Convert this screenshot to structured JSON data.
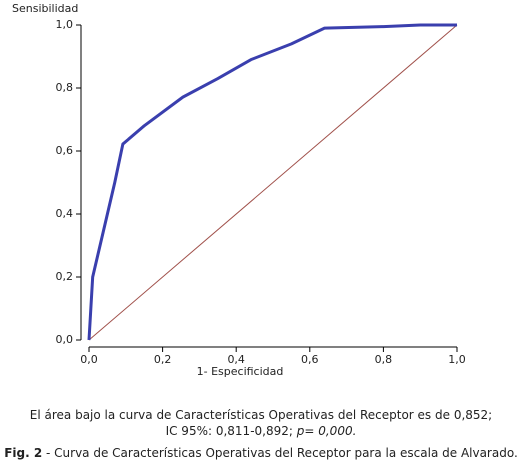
{
  "chart_data": {
    "type": "line",
    "ylabel": "Sensibilidad",
    "xlabel": "1- Especificidad",
    "xlim": [
      0,
      1
    ],
    "ylim": [
      0,
      1
    ],
    "xticks": [
      {
        "value": 0,
        "label": "0,0"
      },
      {
        "value": 0.2,
        "label": "0,2"
      },
      {
        "value": 0.4,
        "label": "0,4"
      },
      {
        "value": 0.6,
        "label": "0,6"
      },
      {
        "value": 0.8,
        "label": "0,8"
      },
      {
        "value": 1,
        "label": "1,0"
      }
    ],
    "yticks": [
      {
        "value": 0,
        "label": "0,0"
      },
      {
        "value": 0.2,
        "label": "0,2"
      },
      {
        "value": 0.4,
        "label": "0,4"
      },
      {
        "value": 0.6,
        "label": "0,6"
      },
      {
        "value": 0.8,
        "label": "0,8"
      },
      {
        "value": 1,
        "label": "1,0"
      }
    ],
    "grid": false,
    "series": [
      {
        "color": "#3a3fae",
        "width": 3,
        "x": [
          0,
          0.005,
          0.01,
          0.02,
          0.03,
          0.04,
          0.05,
          0.07,
          0.092,
          0.15,
          0.255,
          0.35,
          0.44,
          0.55,
          0.64,
          0.8,
          0.9,
          1
        ],
        "values": [
          0,
          0.1,
          0.2,
          0.25,
          0.3,
          0.35,
          0.4,
          0.5,
          0.622,
          0.68,
          0.771,
          0.83,
          0.89,
          0.94,
          0.99,
          0.995,
          1,
          1
        ]
      },
      {
        "color": "#a0504a",
        "width": 1,
        "x": [
          0,
          1
        ],
        "values": [
          0,
          1
        ]
      }
    ]
  },
  "caption": {
    "line1": "El área bajo la curva de Características Operativas del Receptor es de 0,852;",
    "line2": "IC 95%: 0,811-0,892;",
    "line2_italic": "p= 0,000.",
    "fig_label": "Fig. 2",
    "fig_text": " - Curva de Características Operativas del Receptor para la escala de Alvarado."
  }
}
